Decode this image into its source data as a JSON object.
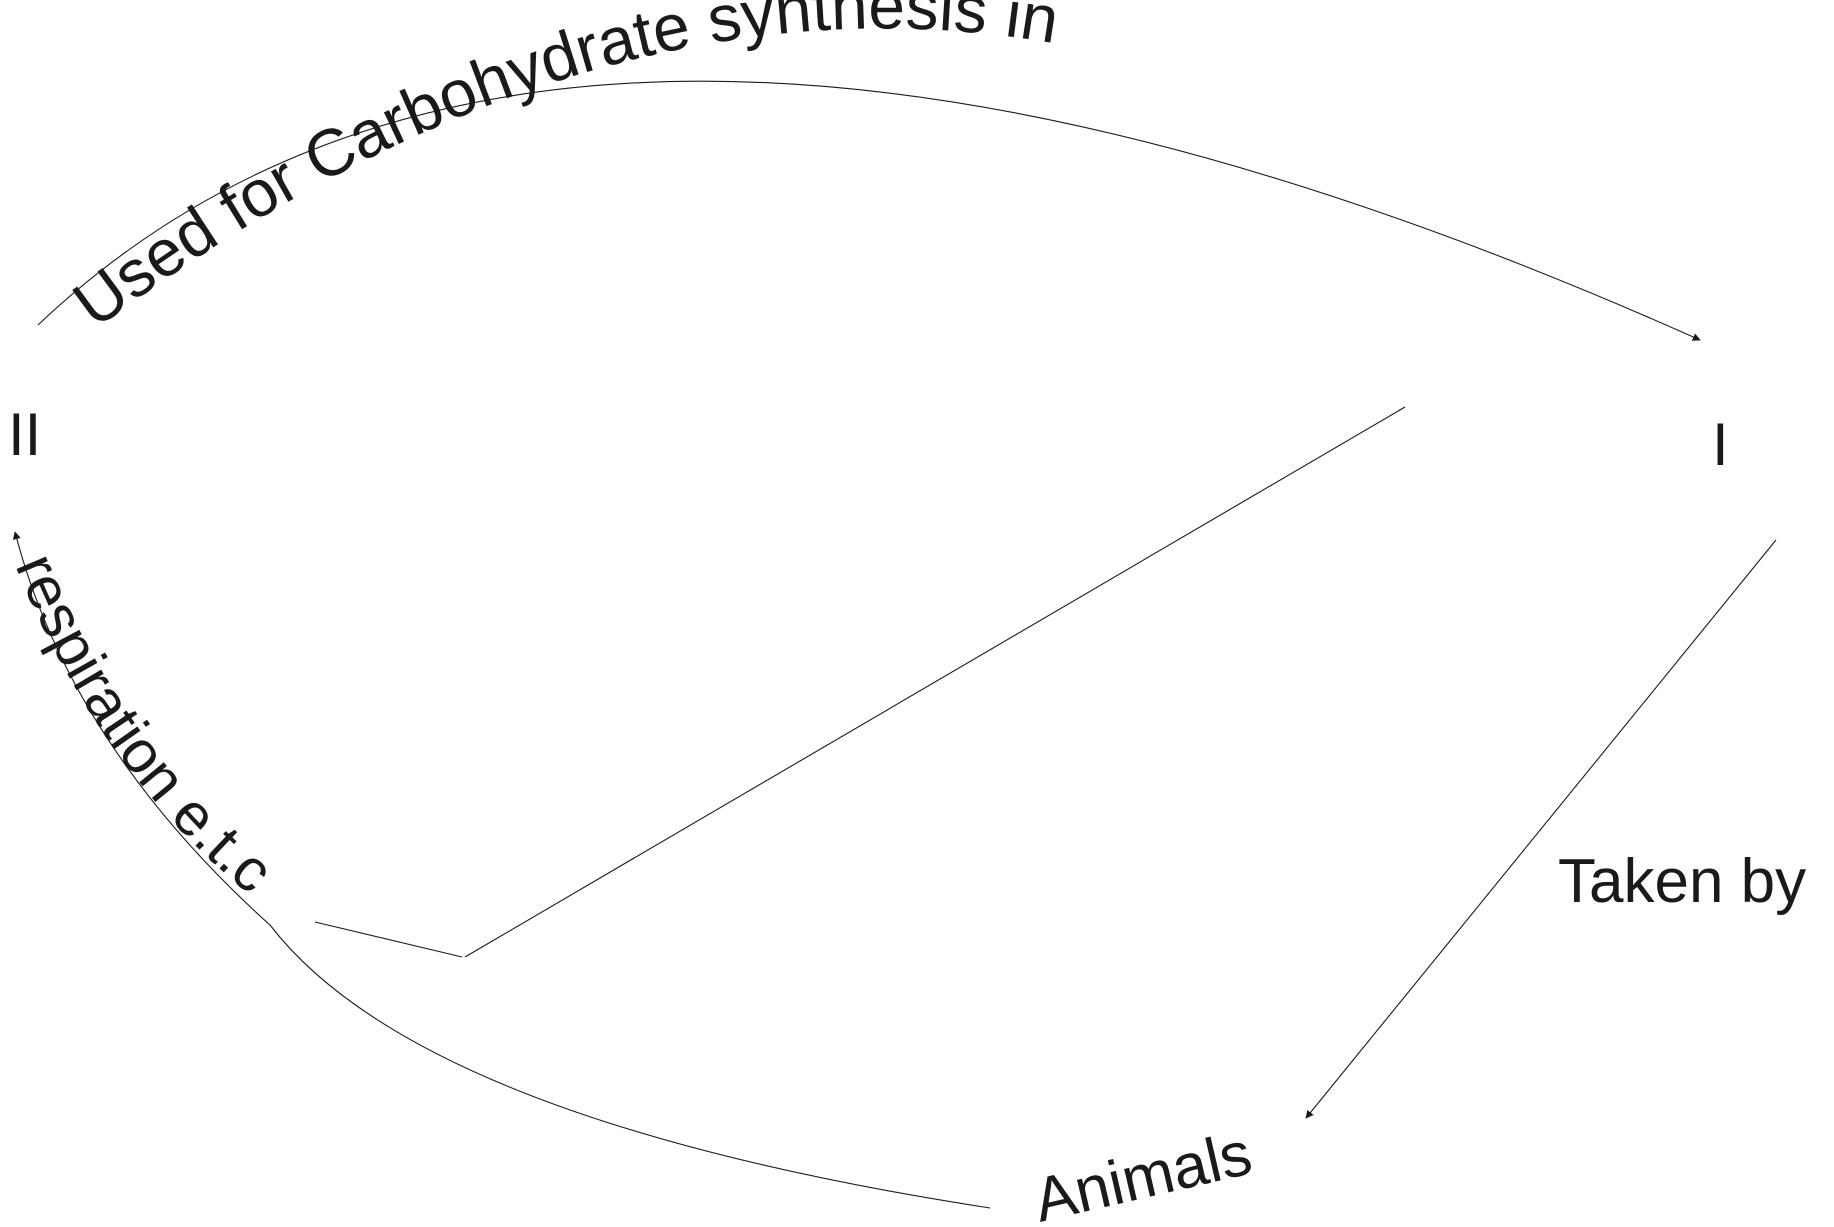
{
  "diagram": {
    "top_arc_label": "Used for Carbohydrate synthesis in",
    "left_arc_label": "respiration  e.t.c",
    "node_right": "I",
    "node_left": "II",
    "edge_right_label": "Taken by",
    "node_bottom": "Animals"
  }
}
